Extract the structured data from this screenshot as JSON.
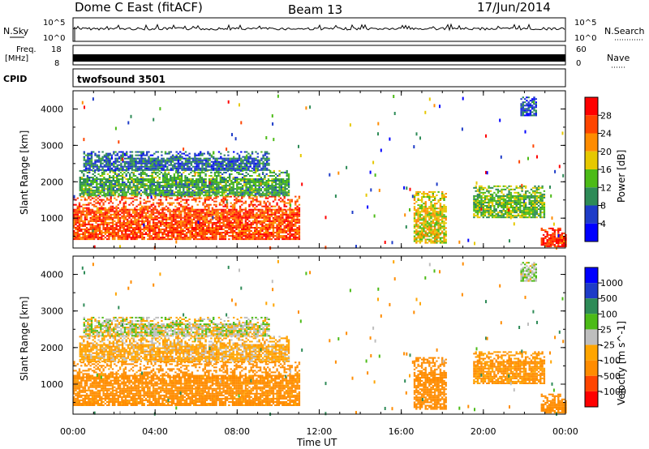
{
  "header": {
    "station": "Dome C East (fitACF)",
    "beam": "Beam 13",
    "date": "17/Jun/2014"
  },
  "noise_panel": {
    "left_label": "N.Sky",
    "left_ticks": [
      "10^5",
      "10^0"
    ],
    "right_label": "N.Search",
    "right_ticks": [
      "10^5",
      "10^0"
    ]
  },
  "freq_panel": {
    "left_label_top": "Freq.",
    "left_label_unit": "[MHz]",
    "left_ticks": [
      "18",
      "8"
    ],
    "right_label": "Nave",
    "right_ticks": [
      "60",
      "0"
    ]
  },
  "cpid_panel": {
    "label": "CPID",
    "program": "twofsound 3501"
  },
  "x_axis": {
    "title": "Time UT",
    "ticks": [
      "00:00",
      "04:00",
      "08:00",
      "12:00",
      "16:00",
      "20:00",
      "00:00"
    ]
  },
  "y_axis": {
    "title": "Slant Range [km]",
    "ticks": [
      "1000",
      "2000",
      "3000",
      "4000"
    ]
  },
  "colors": {
    "power": [
      "#0000ff",
      "#1e3cc8",
      "#2e8b57",
      "#4cbb17",
      "#e6c800",
      "#ff8c00",
      "#ff4500",
      "#ff0000"
    ],
    "velocity": [
      "#0000ff",
      "#1e3cc8",
      "#2e8b57",
      "#4cbb17",
      "#bebebe",
      "#ffa500",
      "#ff8c00",
      "#ff4500",
      "#ff0000"
    ]
  },
  "chart_data": [
    {
      "type": "heatmap",
      "name": "power",
      "ylabel": "Slant Range [km]",
      "xlabel": "",
      "xlim": [
        "00:00",
        "24:00"
      ],
      "ylim": [
        180,
        4500
      ],
      "colorbar_label": "Power [dB]",
      "colorbar_ticks": [
        "4",
        "8",
        "12",
        "16",
        "20",
        "24",
        "28"
      ],
      "colorbar_range": [
        0,
        32
      ],
      "regions": [
        {
          "t": [
            0.0,
            11.0
          ],
          "range": [
            400,
            1600
          ],
          "value": 26
        },
        {
          "t": [
            0.3,
            10.5
          ],
          "range": [
            1600,
            2300
          ],
          "value": 12
        },
        {
          "t": [
            0.5,
            9.5
          ],
          "range": [
            2300,
            2800
          ],
          "value": 8
        },
        {
          "t": [
            16.6,
            18.2
          ],
          "range": [
            300,
            1700
          ],
          "value": 18
        },
        {
          "t": [
            19.5,
            23.0
          ],
          "range": [
            1000,
            1900
          ],
          "value": 14
        },
        {
          "t": [
            22.8,
            24.0
          ],
          "range": [
            200,
            700
          ],
          "value": 28
        },
        {
          "t": [
            21.8,
            22.6
          ],
          "range": [
            3800,
            4300
          ],
          "value": 6
        }
      ]
    },
    {
      "type": "heatmap",
      "name": "velocity",
      "ylabel": "Slant Range [km]",
      "xlabel": "Time UT",
      "xlim": [
        "00:00",
        "24:00"
      ],
      "ylim": [
        180,
        4500
      ],
      "colorbar_label": "Velocity [m s^-1]",
      "colorbar_ticks": [
        "1000",
        "500",
        "100",
        "25",
        "-25",
        "-100",
        "-500",
        "-1000"
      ],
      "regions": [
        {
          "t": [
            0.0,
            11.0
          ],
          "range": [
            400,
            1600
          ],
          "value": -150
        },
        {
          "t": [
            0.3,
            10.5
          ],
          "range": [
            1600,
            2300
          ],
          "value": -60
        },
        {
          "t": [
            0.5,
            9.5
          ],
          "range": [
            2300,
            2800
          ],
          "value": 0
        },
        {
          "t": [
            16.6,
            18.2
          ],
          "range": [
            300,
            1700
          ],
          "value": -200
        },
        {
          "t": [
            19.5,
            23.0
          ],
          "range": [
            1000,
            1900
          ],
          "value": -120
        },
        {
          "t": [
            22.8,
            24.0
          ],
          "range": [
            200,
            700
          ],
          "value": -300
        },
        {
          "t": [
            21.8,
            22.6
          ],
          "range": [
            3800,
            4300
          ],
          "value": 10
        }
      ]
    }
  ]
}
